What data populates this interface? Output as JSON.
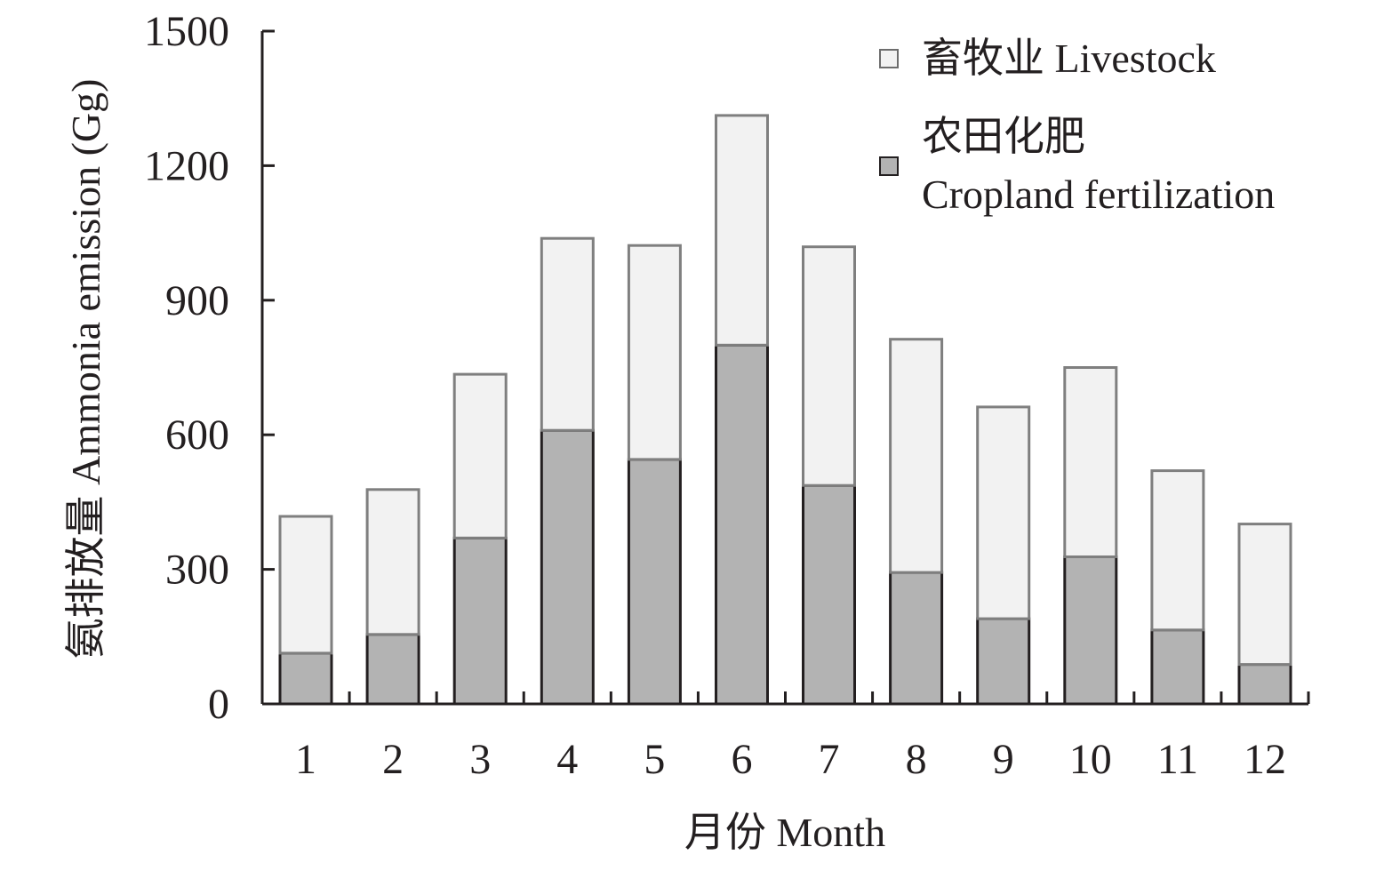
{
  "chart_data": {
    "type": "bar",
    "stacked": true,
    "title": "",
    "xlabel": "月份 Month",
    "ylabel": "氨排放量 Ammonia emission (Gg)",
    "categories": [
      "1",
      "2",
      "3",
      "4",
      "5",
      "6",
      "7",
      "8",
      "9",
      "10",
      "11",
      "12"
    ],
    "ylim": [
      0,
      1500
    ],
    "yticks": [
      "0",
      "300",
      "600",
      "900",
      "1200",
      "1500"
    ],
    "grid": false,
    "legend_position": "top-right",
    "series": [
      {
        "name": "农田化肥 Cropland fertilization",
        "legend_lines": [
          "农田化肥",
          "Cropland fertilization"
        ],
        "color": "#b3b3b3",
        "values": [
          113,
          155,
          370,
          610,
          545,
          800,
          487,
          293,
          190,
          328,
          165,
          88
        ]
      },
      {
        "name": "畜牧业 Livestock",
        "legend_lines": [
          "畜牧业 Livestock"
        ],
        "color": "#f2f2f2",
        "values": [
          305,
          323,
          365,
          428,
          477,
          512,
          532,
          520,
          472,
          422,
          355,
          313
        ]
      }
    ]
  }
}
